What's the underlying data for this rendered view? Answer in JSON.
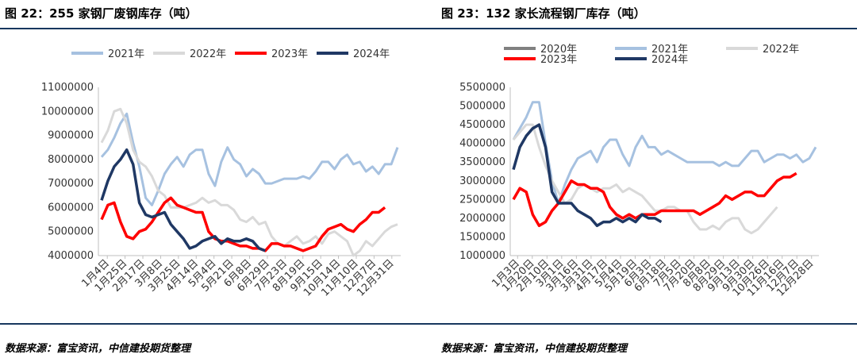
{
  "charts": [
    {
      "title": "图 22：255 家钢厂废钢库存（吨）",
      "source": "数据来源：富宝资讯，中信建投期货整理",
      "chart_data": {
        "type": "line",
        "ylim": [
          4000000,
          11000000
        ],
        "yticks": [
          "4000000",
          "5000000",
          "6000000",
          "7000000",
          "8000000",
          "9000000",
          "10000000",
          "11000000"
        ],
        "xtick_labels": [
          "1月4日",
          "1月25日",
          "2月17日",
          "3月8日",
          "3月25日",
          "4月14日",
          "5月4日",
          "5月21日",
          "6月8日",
          "6月29日",
          "7月23日",
          "8月19日",
          "9月15日",
          "10月14日",
          "11月10日",
          "12月7日",
          "12月31日"
        ],
        "grid": false,
        "legend": "top",
        "series": [
          {
            "name": "2021年",
            "color": "#a6c1e0",
            "values": [
              8100000,
              8400000,
              8900000,
              9500000,
              9900000,
              8700000,
              7700000,
              6400000,
              6100000,
              6700000,
              7400000,
              7800000,
              8100000,
              7700000,
              8200000,
              8400000,
              8400000,
              7400000,
              6900000,
              7900000,
              8500000,
              8000000,
              7800000,
              7300000,
              7600000,
              7400000,
              7000000,
              7000000,
              7100000,
              7200000,
              7200000,
              7200000,
              7300000,
              7200000,
              7500000,
              7900000,
              7900000,
              7600000,
              8000000,
              8200000,
              7800000,
              7900000,
              7500000,
              7700000,
              7400000,
              7800000,
              7800000,
              8500000
            ]
          },
          {
            "name": "2022年",
            "color": "#d9d9d9",
            "values": [
              8700000,
              9200000,
              10000000,
              10100000,
              9500000,
              8400000,
              7900000,
              7700000,
              7300000,
              6700000,
              6500000,
              6000000,
              6000000,
              6000000,
              6100000,
              6200000,
              6400000,
              6200000,
              6300000,
              6100000,
              6100000,
              5900000,
              5500000,
              5400000,
              5600000,
              5300000,
              5400000,
              4800000,
              4500000,
              4400000,
              4600000,
              4800000,
              4500000,
              4600000,
              4800000,
              4500000,
              4900000,
              5000000,
              4800000,
              4600000,
              4000000,
              4200000,
              4600000,
              4400000,
              4700000,
              5000000,
              5200000,
              5300000
            ]
          },
          {
            "name": "2023年",
            "color": "#ff0000",
            "values": [
              5500000,
              6100000,
              6200000,
              5400000,
              4800000,
              4700000,
              5000000,
              5100000,
              5400000,
              5800000,
              6200000,
              6400000,
              6100000,
              6000000,
              5900000,
              5800000,
              5800000,
              5000000,
              4700000,
              4600000,
              4600000,
              4500000,
              4400000,
              4400000,
              4300000,
              4300000,
              4200000,
              4500000,
              4500000,
              4400000,
              4400000,
              4300000,
              4200000,
              4300000,
              4400000,
              4800000,
              5100000,
              5200000,
              5300000,
              5100000,
              5000000,
              5300000,
              5500000,
              5800000,
              5800000,
              6000000
            ]
          },
          {
            "name": "2024年",
            "color": "#1f3864",
            "values": [
              6300000,
              7100000,
              7700000,
              8000000,
              8400000,
              7800000,
              6200000,
              5700000,
              5600000,
              5700000,
              5800000,
              5300000,
              5000000,
              4700000,
              4300000,
              4400000,
              4600000,
              4700000,
              4800000,
              4500000,
              4700000,
              4600000,
              4600000,
              4700000,
              4600000,
              4300000,
              4200000
            ]
          }
        ]
      }
    },
    {
      "title": "图 23：132 家长流程钢厂库存（吨）",
      "source": "数据来源：富宝资讯，中信建投期货整理",
      "chart_data": {
        "type": "line",
        "ylim": [
          1000000,
          5500000
        ],
        "yticks": [
          "1000000",
          "1500000",
          "2000000",
          "2500000",
          "3000000",
          "3500000",
          "4000000",
          "4500000",
          "5000000",
          "5500000"
        ],
        "xtick_labels": [
          "1月3日",
          "1月20日",
          "2月10日",
          "3月1日",
          "3月16日",
          "3月31日",
          "4月17日",
          "5月4日",
          "5月19日",
          "6月3日",
          "6月18日",
          "7月5日",
          "7月20日",
          "8月8日",
          "8月29日",
          "9月13日",
          "9月30日",
          "10月26日",
          "11月16日",
          "12月7日",
          "12月28日"
        ],
        "grid": false,
        "legend": "top",
        "series": [
          {
            "name": "2020年",
            "color": "#808080",
            "values": []
          },
          {
            "name": "2021年",
            "color": "#a6c1e0",
            "values": [
              4100000,
              4400000,
              4700000,
              5100000,
              5100000,
              4000000,
              3000000,
              2400000,
              2900000,
              3300000,
              3600000,
              3700000,
              3800000,
              3500000,
              3900000,
              4100000,
              4100000,
              3700000,
              3400000,
              3900000,
              4200000,
              3900000,
              3900000,
              3700000,
              3800000,
              3700000,
              3600000,
              3500000,
              3500000,
              3500000,
              3500000,
              3500000,
              3400000,
              3500000,
              3400000,
              3400000,
              3600000,
              3800000,
              3800000,
              3500000,
              3600000,
              3700000,
              3700000,
              3600000,
              3700000,
              3500000,
              3600000,
              3900000
            ]
          },
          {
            "name": "2022年",
            "color": "#d9d9d9",
            "values": [
              4100000,
              4300000,
              4500000,
              4500000,
              3900000,
              3400000,
              3000000,
              2700000,
              2400000,
              2500000,
              2800000,
              2900000,
              2800000,
              2700000,
              2800000,
              2800000,
              2900000,
              2700000,
              2800000,
              2700000,
              2600000,
              2400000,
              2200000,
              2200000,
              2300000,
              2300000,
              2200000,
              2200000,
              1900000,
              1700000,
              1700000,
              1800000,
              1700000,
              1900000,
              2000000,
              2000000,
              1700000,
              1600000,
              1700000,
              1900000,
              2100000,
              2300000
            ]
          },
          {
            "name": "2023年",
            "color": "#ff0000",
            "values": [
              2500000,
              2800000,
              2700000,
              2100000,
              1800000,
              1900000,
              2200000,
              2400000,
              2700000,
              3000000,
              2900000,
              2900000,
              2800000,
              2800000,
              2700000,
              2300000,
              2100000,
              2000000,
              2100000,
              2000000,
              2100000,
              2100000,
              2100000,
              2200000,
              2200000,
              2200000,
              2200000,
              2200000,
              2200000,
              2100000,
              2200000,
              2300000,
              2400000,
              2600000,
              2500000,
              2600000,
              2700000,
              2700000,
              2600000,
              2600000,
              2800000,
              3000000,
              3100000,
              3100000,
              3200000
            ]
          },
          {
            "name": "2024年",
            "color": "#1f3864",
            "values": [
              3300000,
              3900000,
              4200000,
              4400000,
              4500000,
              3900000,
              2700000,
              2400000,
              2400000,
              2400000,
              2200000,
              2100000,
              2000000,
              1800000,
              1900000,
              1900000,
              2000000,
              1900000,
              2000000,
              1900000,
              2100000,
              2000000,
              2000000,
              1900000
            ]
          }
        ]
      }
    }
  ]
}
